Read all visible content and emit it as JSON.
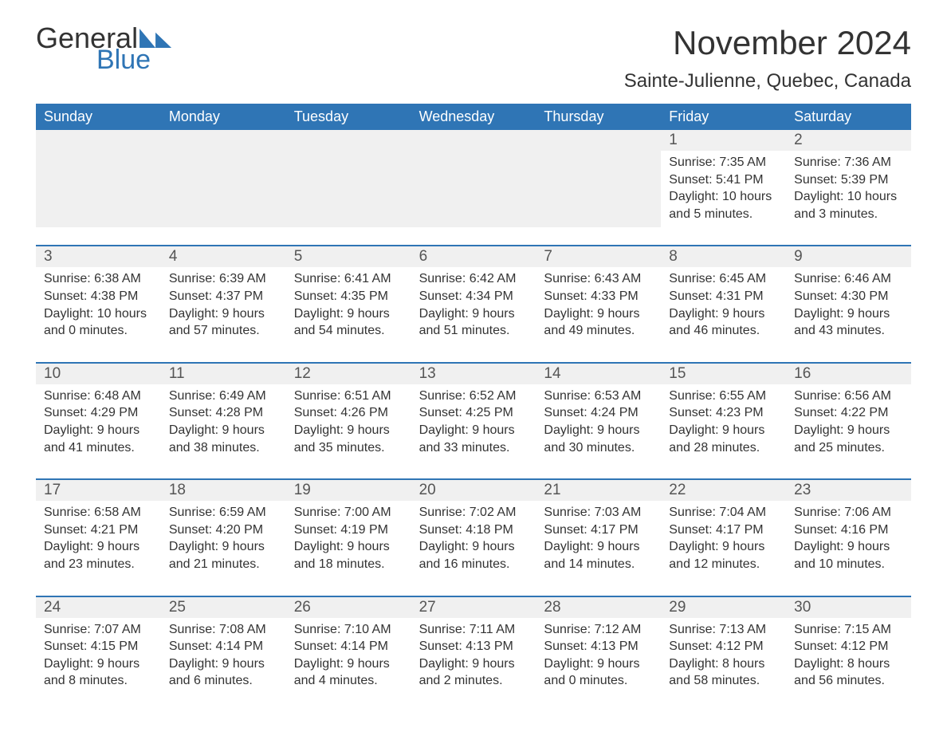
{
  "brand": {
    "word1": "General",
    "word2": "Blue"
  },
  "title": "November 2024",
  "location": "Sainte-Julienne, Quebec, Canada",
  "colors": {
    "accent": "#2f75b5",
    "header_text": "#ffffff",
    "strip_bg": "#f0f0f0",
    "body_text": "#333333",
    "daynum_text": "#555555",
    "background": "#ffffff"
  },
  "typography": {
    "title_fontsize": 42,
    "location_fontsize": 24,
    "dayhead_fontsize": 18,
    "cell_fontsize": 16,
    "daynum_fontsize": 19,
    "font_family": "Arial"
  },
  "day_headers": [
    "Sunday",
    "Monday",
    "Tuesday",
    "Wednesday",
    "Thursday",
    "Friday",
    "Saturday"
  ],
  "weeks": [
    [
      {
        "empty": true
      },
      {
        "empty": true
      },
      {
        "empty": true
      },
      {
        "empty": true
      },
      {
        "empty": true
      },
      {
        "day": "1",
        "sunrise": "Sunrise: 7:35 AM",
        "sunset": "Sunset: 5:41 PM",
        "daylight1": "Daylight: 10 hours",
        "daylight2": "and 5 minutes."
      },
      {
        "day": "2",
        "sunrise": "Sunrise: 7:36 AM",
        "sunset": "Sunset: 5:39 PM",
        "daylight1": "Daylight: 10 hours",
        "daylight2": "and 3 minutes."
      }
    ],
    [
      {
        "day": "3",
        "sunrise": "Sunrise: 6:38 AM",
        "sunset": "Sunset: 4:38 PM",
        "daylight1": "Daylight: 10 hours",
        "daylight2": "and 0 minutes."
      },
      {
        "day": "4",
        "sunrise": "Sunrise: 6:39 AM",
        "sunset": "Sunset: 4:37 PM",
        "daylight1": "Daylight: 9 hours",
        "daylight2": "and 57 minutes."
      },
      {
        "day": "5",
        "sunrise": "Sunrise: 6:41 AM",
        "sunset": "Sunset: 4:35 PM",
        "daylight1": "Daylight: 9 hours",
        "daylight2": "and 54 minutes."
      },
      {
        "day": "6",
        "sunrise": "Sunrise: 6:42 AM",
        "sunset": "Sunset: 4:34 PM",
        "daylight1": "Daylight: 9 hours",
        "daylight2": "and 51 minutes."
      },
      {
        "day": "7",
        "sunrise": "Sunrise: 6:43 AM",
        "sunset": "Sunset: 4:33 PM",
        "daylight1": "Daylight: 9 hours",
        "daylight2": "and 49 minutes."
      },
      {
        "day": "8",
        "sunrise": "Sunrise: 6:45 AM",
        "sunset": "Sunset: 4:31 PM",
        "daylight1": "Daylight: 9 hours",
        "daylight2": "and 46 minutes."
      },
      {
        "day": "9",
        "sunrise": "Sunrise: 6:46 AM",
        "sunset": "Sunset: 4:30 PM",
        "daylight1": "Daylight: 9 hours",
        "daylight2": "and 43 minutes."
      }
    ],
    [
      {
        "day": "10",
        "sunrise": "Sunrise: 6:48 AM",
        "sunset": "Sunset: 4:29 PM",
        "daylight1": "Daylight: 9 hours",
        "daylight2": "and 41 minutes."
      },
      {
        "day": "11",
        "sunrise": "Sunrise: 6:49 AM",
        "sunset": "Sunset: 4:28 PM",
        "daylight1": "Daylight: 9 hours",
        "daylight2": "and 38 minutes."
      },
      {
        "day": "12",
        "sunrise": "Sunrise: 6:51 AM",
        "sunset": "Sunset: 4:26 PM",
        "daylight1": "Daylight: 9 hours",
        "daylight2": "and 35 minutes."
      },
      {
        "day": "13",
        "sunrise": "Sunrise: 6:52 AM",
        "sunset": "Sunset: 4:25 PM",
        "daylight1": "Daylight: 9 hours",
        "daylight2": "and 33 minutes."
      },
      {
        "day": "14",
        "sunrise": "Sunrise: 6:53 AM",
        "sunset": "Sunset: 4:24 PM",
        "daylight1": "Daylight: 9 hours",
        "daylight2": "and 30 minutes."
      },
      {
        "day": "15",
        "sunrise": "Sunrise: 6:55 AM",
        "sunset": "Sunset: 4:23 PM",
        "daylight1": "Daylight: 9 hours",
        "daylight2": "and 28 minutes."
      },
      {
        "day": "16",
        "sunrise": "Sunrise: 6:56 AM",
        "sunset": "Sunset: 4:22 PM",
        "daylight1": "Daylight: 9 hours",
        "daylight2": "and 25 minutes."
      }
    ],
    [
      {
        "day": "17",
        "sunrise": "Sunrise: 6:58 AM",
        "sunset": "Sunset: 4:21 PM",
        "daylight1": "Daylight: 9 hours",
        "daylight2": "and 23 minutes."
      },
      {
        "day": "18",
        "sunrise": "Sunrise: 6:59 AM",
        "sunset": "Sunset: 4:20 PM",
        "daylight1": "Daylight: 9 hours",
        "daylight2": "and 21 minutes."
      },
      {
        "day": "19",
        "sunrise": "Sunrise: 7:00 AM",
        "sunset": "Sunset: 4:19 PM",
        "daylight1": "Daylight: 9 hours",
        "daylight2": "and 18 minutes."
      },
      {
        "day": "20",
        "sunrise": "Sunrise: 7:02 AM",
        "sunset": "Sunset: 4:18 PM",
        "daylight1": "Daylight: 9 hours",
        "daylight2": "and 16 minutes."
      },
      {
        "day": "21",
        "sunrise": "Sunrise: 7:03 AM",
        "sunset": "Sunset: 4:17 PM",
        "daylight1": "Daylight: 9 hours",
        "daylight2": "and 14 minutes."
      },
      {
        "day": "22",
        "sunrise": "Sunrise: 7:04 AM",
        "sunset": "Sunset: 4:17 PM",
        "daylight1": "Daylight: 9 hours",
        "daylight2": "and 12 minutes."
      },
      {
        "day": "23",
        "sunrise": "Sunrise: 7:06 AM",
        "sunset": "Sunset: 4:16 PM",
        "daylight1": "Daylight: 9 hours",
        "daylight2": "and 10 minutes."
      }
    ],
    [
      {
        "day": "24",
        "sunrise": "Sunrise: 7:07 AM",
        "sunset": "Sunset: 4:15 PM",
        "daylight1": "Daylight: 9 hours",
        "daylight2": "and 8 minutes."
      },
      {
        "day": "25",
        "sunrise": "Sunrise: 7:08 AM",
        "sunset": "Sunset: 4:14 PM",
        "daylight1": "Daylight: 9 hours",
        "daylight2": "and 6 minutes."
      },
      {
        "day": "26",
        "sunrise": "Sunrise: 7:10 AM",
        "sunset": "Sunset: 4:14 PM",
        "daylight1": "Daylight: 9 hours",
        "daylight2": "and 4 minutes."
      },
      {
        "day": "27",
        "sunrise": "Sunrise: 7:11 AM",
        "sunset": "Sunset: 4:13 PM",
        "daylight1": "Daylight: 9 hours",
        "daylight2": "and 2 minutes."
      },
      {
        "day": "28",
        "sunrise": "Sunrise: 7:12 AM",
        "sunset": "Sunset: 4:13 PM",
        "daylight1": "Daylight: 9 hours",
        "daylight2": "and 0 minutes."
      },
      {
        "day": "29",
        "sunrise": "Sunrise: 7:13 AM",
        "sunset": "Sunset: 4:12 PM",
        "daylight1": "Daylight: 8 hours",
        "daylight2": "and 58 minutes."
      },
      {
        "day": "30",
        "sunrise": "Sunrise: 7:15 AM",
        "sunset": "Sunset: 4:12 PM",
        "daylight1": "Daylight: 8 hours",
        "daylight2": "and 56 minutes."
      }
    ]
  ]
}
